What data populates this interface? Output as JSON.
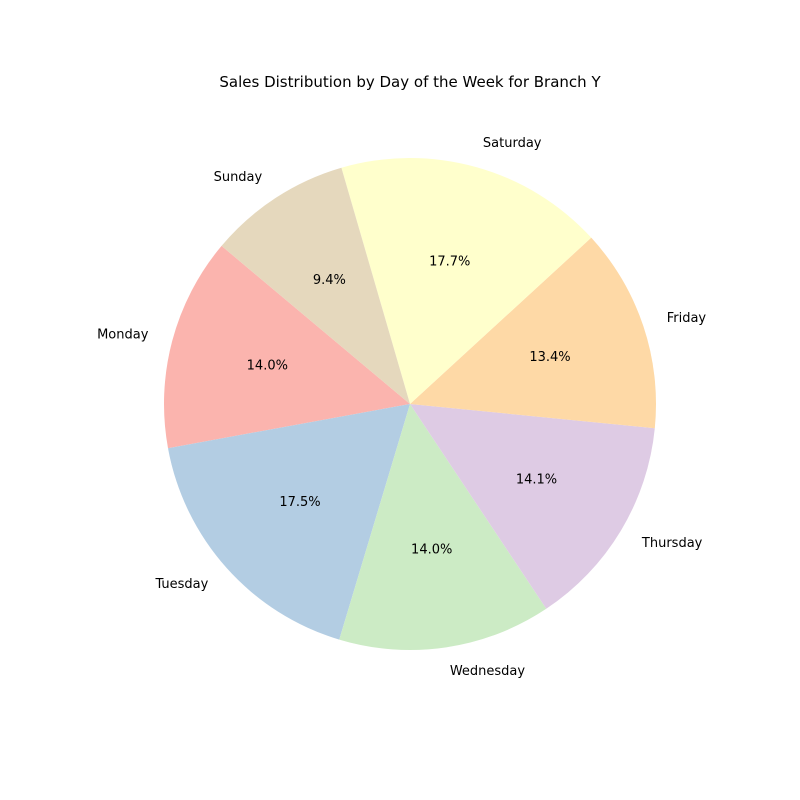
{
  "chart_data": {
    "type": "pie",
    "title": "Sales Distribution by Day of the Week for Branch Y",
    "start_angle_deg": 140,
    "direction": "counterclockwise",
    "slices": [
      {
        "label": "Monday",
        "value": 14.0,
        "pct_text": "14.0%",
        "color": "#fbb4ae"
      },
      {
        "label": "Tuesday",
        "value": 17.5,
        "pct_text": "17.5%",
        "color": "#b3cde3"
      },
      {
        "label": "Wednesday",
        "value": 14.0,
        "pct_text": "14.0%",
        "color": "#ccebc5"
      },
      {
        "label": "Thursday",
        "value": 14.1,
        "pct_text": "14.1%",
        "color": "#decbe4"
      },
      {
        "label": "Friday",
        "value": 13.4,
        "pct_text": "13.4%",
        "color": "#fed9a6"
      },
      {
        "label": "Saturday",
        "value": 17.7,
        "pct_text": "17.7%",
        "color": "#ffffcc"
      },
      {
        "label": "Sunday",
        "value": 9.4,
        "pct_text": "9.4%",
        "color": "#e5d8bd"
      }
    ]
  }
}
